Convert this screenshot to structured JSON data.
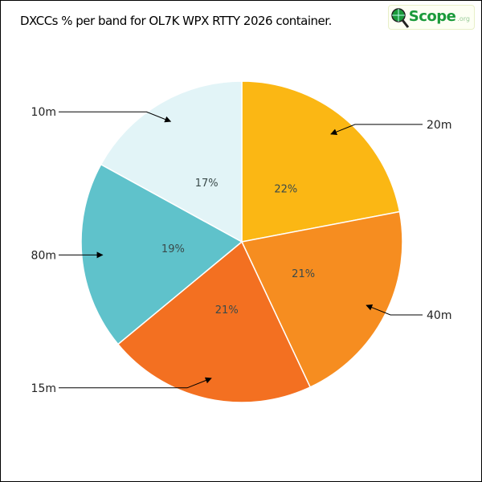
{
  "chart_data": {
    "type": "pie",
    "title": "DXCCs % per band for OL7K WPX RTTY 2026 container.",
    "categories": [
      "20m",
      "40m",
      "15m",
      "80m",
      "10m"
    ],
    "values": [
      22,
      21,
      21,
      19,
      17
    ],
    "value_labels": [
      "22%",
      "21%",
      "21%",
      "19%",
      "17%"
    ],
    "colors": [
      "#fbb714",
      "#f68d20",
      "#f37021",
      "#5fc2cb",
      "#e2f4f7"
    ],
    "start": "top",
    "direction": "clockwise"
  },
  "logo": {
    "text": "Scope",
    "suffix": ".org",
    "colors": {
      "green": "#1a9a3a"
    }
  }
}
